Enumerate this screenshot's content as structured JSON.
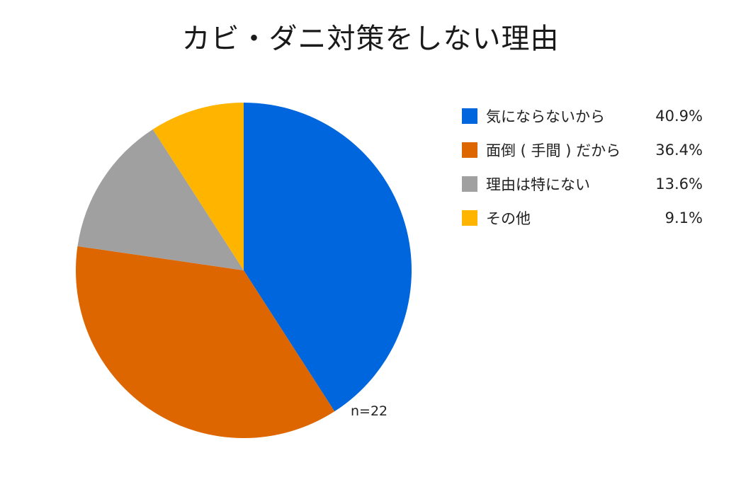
{
  "chart_data": {
    "type": "pie",
    "title": "カビ・ダニ対策をしない理由",
    "slices": [
      {
        "label": "気にならないから",
        "value": 40.9,
        "value_label": "40.9%",
        "color": "#0066DD"
      },
      {
        "label": "面倒 ( 手間 ) だから",
        "value": 36.4,
        "value_label": "36.4%",
        "color": "#DD6600"
      },
      {
        "label": "理由は特にない",
        "value": 13.6,
        "value_label": "13.6%",
        "color": "#A0A0A0"
      },
      {
        "label": "その他",
        "value": 9.1,
        "value_label": "9.1%",
        "color": "#FFB400"
      }
    ],
    "start": "12 o'clock",
    "direction": "clockwise",
    "legend_position": "right",
    "sample_size": "n=22"
  }
}
